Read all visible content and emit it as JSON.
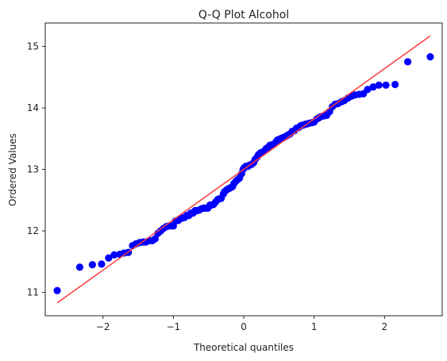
{
  "chart_data": {
    "type": "scatter",
    "title": "Q-Q Plot Alcohol",
    "xlabel": "Theoretical quantiles",
    "ylabel": "Ordered Values",
    "xlim": [
      -2.82,
      2.82
    ],
    "ylim": [
      10.62,
      15.38
    ],
    "xticks": [
      -2,
      -1,
      0,
      1,
      2
    ],
    "yticks": [
      11,
      12,
      13,
      14,
      15
    ],
    "grid": false,
    "legend": "none",
    "colors": {
      "points": "#0000ff",
      "fit_line": "#ff3b3b"
    },
    "fit_line": {
      "x": [
        -2.65,
        2.65
      ],
      "y": [
        10.83,
        15.17
      ]
    },
    "series": [
      {
        "points": [
          [
            -2.65,
            11.03
          ],
          [
            -2.33,
            11.41
          ],
          [
            -2.15,
            11.45
          ],
          [
            -2.02,
            11.46
          ],
          [
            -1.92,
            11.56
          ],
          [
            -1.84,
            11.61
          ],
          [
            -1.76,
            11.62
          ],
          [
            -1.7,
            11.64
          ],
          [
            -1.64,
            11.65
          ],
          [
            -1.58,
            11.76
          ],
          [
            -1.53,
            11.79
          ],
          [
            -1.48,
            11.81
          ],
          [
            -1.43,
            11.82
          ],
          [
            -1.39,
            11.82
          ],
          [
            -1.34,
            11.84
          ],
          [
            -1.3,
            11.84
          ],
          [
            -1.26,
            11.87
          ],
          [
            -1.22,
            11.96
          ],
          [
            -1.18,
            12.0
          ],
          [
            -1.14,
            12.04
          ],
          [
            -1.1,
            12.07
          ],
          [
            -1.07,
            12.08
          ],
          [
            -1.04,
            12.08
          ],
          [
            -1.0,
            12.08
          ],
          [
            -0.97,
            12.16
          ],
          [
            -0.93,
            12.17
          ],
          [
            -0.9,
            12.2
          ],
          [
            -0.87,
            12.21
          ],
          [
            -0.84,
            12.22
          ],
          [
            -0.81,
            12.25
          ],
          [
            -0.78,
            12.25
          ],
          [
            -0.75,
            12.29
          ],
          [
            -0.72,
            12.29
          ],
          [
            -0.69,
            12.33
          ],
          [
            -0.66,
            12.33
          ],
          [
            -0.63,
            12.34
          ],
          [
            -0.6,
            12.36
          ],
          [
            -0.57,
            12.37
          ],
          [
            -0.54,
            12.37
          ],
          [
            -0.51,
            12.37
          ],
          [
            -0.48,
            12.42
          ],
          [
            -0.46,
            12.42
          ],
          [
            -0.43,
            12.43
          ],
          [
            -0.4,
            12.47
          ],
          [
            -0.37,
            12.51
          ],
          [
            -0.35,
            12.52
          ],
          [
            -0.32,
            12.53
          ],
          [
            -0.29,
            12.6
          ],
          [
            -0.27,
            12.64
          ],
          [
            -0.24,
            12.67
          ],
          [
            -0.21,
            12.69
          ],
          [
            -0.19,
            12.7
          ],
          [
            -0.16,
            12.72
          ],
          [
            -0.14,
            12.77
          ],
          [
            -0.11,
            12.81
          ],
          [
            -0.08,
            12.84
          ],
          [
            -0.06,
            12.86
          ],
          [
            -0.03,
            12.93
          ],
          [
            -0.01,
            13.0
          ],
          [
            0.01,
            13.03
          ],
          [
            0.03,
            13.05
          ],
          [
            0.06,
            13.05
          ],
          [
            0.08,
            13.07
          ],
          [
            0.11,
            13.08
          ],
          [
            0.14,
            13.11
          ],
          [
            0.16,
            13.16
          ],
          [
            0.19,
            13.2
          ],
          [
            0.21,
            13.24
          ],
          [
            0.24,
            13.27
          ],
          [
            0.27,
            13.28
          ],
          [
            0.29,
            13.3
          ],
          [
            0.32,
            13.34
          ],
          [
            0.35,
            13.36
          ],
          [
            0.37,
            13.39
          ],
          [
            0.4,
            13.4
          ],
          [
            0.43,
            13.41
          ],
          [
            0.46,
            13.45
          ],
          [
            0.48,
            13.48
          ],
          [
            0.51,
            13.49
          ],
          [
            0.54,
            13.51
          ],
          [
            0.57,
            13.52
          ],
          [
            0.6,
            13.54
          ],
          [
            0.63,
            13.56
          ],
          [
            0.66,
            13.58
          ],
          [
            0.69,
            13.62
          ],
          [
            0.72,
            13.63
          ],
          [
            0.75,
            13.67
          ],
          [
            0.78,
            13.68
          ],
          [
            0.81,
            13.71
          ],
          [
            0.84,
            13.72
          ],
          [
            0.87,
            13.73
          ],
          [
            0.9,
            13.74
          ],
          [
            0.93,
            13.75
          ],
          [
            0.97,
            13.76
          ],
          [
            1.0,
            13.77
          ],
          [
            1.04,
            13.82
          ],
          [
            1.07,
            13.84
          ],
          [
            1.1,
            13.86
          ],
          [
            1.14,
            13.87
          ],
          [
            1.18,
            13.88
          ],
          [
            1.22,
            13.94
          ],
          [
            1.26,
            14.02
          ],
          [
            1.3,
            14.06
          ],
          [
            1.34,
            14.07
          ],
          [
            1.39,
            14.1
          ],
          [
            1.43,
            14.12
          ],
          [
            1.48,
            14.16
          ],
          [
            1.53,
            14.19
          ],
          [
            1.58,
            14.21
          ],
          [
            1.64,
            14.22
          ],
          [
            1.7,
            14.23
          ],
          [
            1.76,
            14.3
          ],
          [
            1.84,
            14.34
          ],
          [
            1.92,
            14.37
          ],
          [
            2.02,
            14.37
          ],
          [
            2.15,
            14.38
          ],
          [
            2.33,
            14.75
          ],
          [
            2.65,
            14.83
          ]
        ]
      }
    ]
  }
}
